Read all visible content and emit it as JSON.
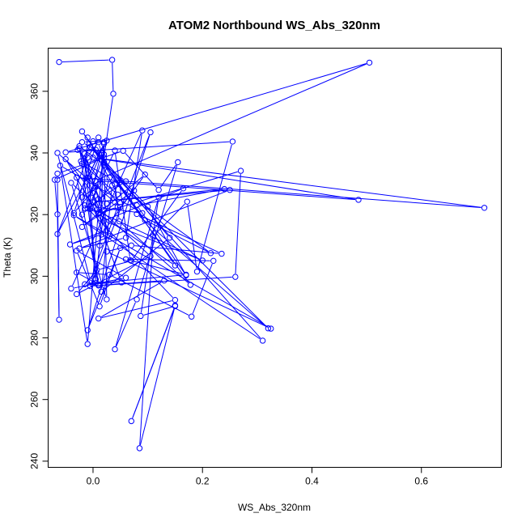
{
  "chart_data": {
    "type": "line",
    "title": "ATOM2 Northbound WS_Abs_320nm",
    "xlabel": "WS_Abs_320nm",
    "ylabel": "Theta (K)",
    "xlim": [
      -0.082,
      0.746
    ],
    "ylim": [
      238,
      374
    ],
    "xticks": [
      0.0,
      0.2,
      0.4,
      0.6
    ],
    "xtick_labels": [
      "0.0",
      "0.2",
      "0.4",
      "0.6"
    ],
    "yticks": [
      240,
      260,
      280,
      300,
      320,
      340,
      360
    ],
    "ytick_labels": [
      "240",
      "260",
      "280",
      "300",
      "320",
      "340",
      "360"
    ],
    "grid": false,
    "colors": {
      "series": "#0000ff",
      "axes": "#000000"
    },
    "series": [
      {
        "points": [
          [
            -0.062,
            369.5
          ],
          [
            0.035,
            370.2
          ],
          [
            0.037,
            359.2
          ],
          [
            0.02,
            338.5
          ],
          [
            -0.07,
            331.3
          ],
          [
            -0.065,
            320.1
          ],
          [
            -0.062,
            285.9
          ],
          [
            -0.065,
            331.3
          ],
          [
            -0.065,
            333.3
          ],
          [
            0.055,
            340.7
          ],
          [
            0.12,
            328.0
          ],
          [
            0.155,
            337.0
          ],
          [
            0.08,
            292.5
          ],
          [
            0.04,
            276.3
          ],
          [
            0.12,
            325.6
          ],
          [
            0.087,
            287.1
          ],
          [
            0.15,
            290.3
          ],
          [
            0.07,
            253.0
          ],
          [
            0.15,
            290.5
          ],
          [
            0.085,
            244.2
          ],
          [
            0.11,
            313.0
          ],
          [
            0.172,
            324.2
          ],
          [
            0.19,
            301.5
          ],
          [
            0.255,
            343.7
          ],
          [
            -0.05,
            340.2
          ],
          [
            0.505,
            369.3
          ],
          [
            0.004,
            331.0
          ],
          [
            0.485,
            324.8
          ],
          [
            0.0,
            338.5
          ],
          [
            0.715,
            322.2
          ],
          [
            -0.03,
            332.0
          ],
          [
            0.01,
            297.0
          ],
          [
            0.26,
            299.8
          ],
          [
            0.27,
            334.2
          ],
          [
            0.01,
            320.3
          ],
          [
            0.15,
            303.5
          ],
          [
            -0.02,
            347.0
          ],
          [
            0.095,
            318.2
          ],
          [
            0.215,
            307.5
          ],
          [
            0.04,
            330.0
          ],
          [
            0.048,
            317.8
          ],
          [
            0.178,
            297.2
          ],
          [
            0.02,
            336.0
          ],
          [
            0.32,
            283.1
          ],
          [
            0.08,
            320.2
          ],
          [
            0.235,
            307.3
          ],
          [
            0.07,
            310.0
          ],
          [
            0.025,
            308.0
          ],
          [
            0.325,
            283.0
          ],
          [
            -0.035,
            319.8
          ],
          [
            0.31,
            279.1
          ],
          [
            -0.005,
            342.0
          ],
          [
            0.1,
            322.6
          ],
          [
            0.17,
            300.3
          ],
          [
            0.08,
            323.0
          ],
          [
            0.24,
            328.3
          ],
          [
            0.0,
            324.0
          ],
          [
            0.25,
            328.0
          ],
          [
            -0.025,
            309.0
          ],
          [
            0.06,
            312.5
          ],
          [
            0.09,
            347.3
          ],
          [
            -0.04,
            296.0
          ],
          [
            0.06,
            299.5
          ],
          [
            -0.03,
            308.3
          ],
          [
            0.012,
            290.2
          ],
          [
            0.05,
            309.2
          ],
          [
            -0.01,
            282.5
          ],
          [
            0.105,
            346.7
          ],
          [
            -0.005,
            296.8
          ],
          [
            0.13,
            298.6
          ],
          [
            0.01,
            286.3
          ],
          [
            0.15,
            292.3
          ],
          [
            -0.015,
            323.0
          ],
          [
            0.2,
            305.1
          ],
          [
            0.02,
            318.0
          ],
          [
            0.165,
            328.5
          ],
          [
            0.07,
            305.0
          ],
          [
            0.007,
            302.0
          ],
          [
            -0.03,
            294.2
          ],
          [
            0.105,
            306.5
          ],
          [
            -0.04,
            330.3
          ],
          [
            0.025,
            292.5
          ],
          [
            0.02,
            343.5
          ],
          [
            -0.01,
            278.0
          ],
          [
            -0.06,
            335.9
          ],
          [
            0.09,
            320.5
          ],
          [
            0.0,
            322.5
          ],
          [
            0.052,
            298.0
          ],
          [
            -0.015,
            297.4
          ],
          [
            0.17,
            300.5
          ],
          [
            0.06,
            305.5
          ],
          [
            0.22,
            305.0
          ],
          [
            0.18,
            286.9
          ],
          [
            0.03,
            300.5
          ],
          [
            -0.03,
            301.2
          ],
          [
            0.01,
            297.3
          ],
          [
            -0.025,
            342.2
          ],
          [
            0.06,
            330.8
          ],
          [
            0.01,
            325.0
          ],
          [
            -0.02,
            320.0
          ],
          [
            -0.01,
            345.0
          ],
          [
            0.045,
            326.5
          ],
          [
            -0.02,
            336.5
          ],
          [
            0.01,
            343.5
          ],
          [
            0.02,
            337.0
          ],
          [
            -0.005,
            321.8
          ],
          [
            0.035,
            329.5
          ],
          [
            0.015,
            295.0
          ],
          [
            0.14,
            312.5
          ],
          [
            0.005,
            341.0
          ],
          [
            -0.028,
            341.0
          ],
          [
            0.05,
            322.5
          ],
          [
            0.075,
            327.8
          ],
          [
            -0.02,
            316.0
          ],
          [
            0.095,
            333.0
          ],
          [
            0.015,
            313.5
          ],
          [
            -0.042,
            310.3
          ],
          [
            0.025,
            315.0
          ],
          [
            -0.05,
            338.0
          ],
          [
            0.0,
            327.0
          ],
          [
            0.03,
            313.0
          ],
          [
            -0.015,
            339.8
          ],
          [
            0.005,
            297.8
          ],
          [
            -0.01,
            338.5
          ],
          [
            -0.065,
            313.7
          ],
          [
            0.025,
            344.0
          ],
          [
            -0.02,
            343.5
          ],
          [
            0.02,
            339.5
          ],
          [
            -0.015,
            322.0
          ],
          [
            0.012,
            320.6
          ],
          [
            0.03,
            332.0
          ],
          [
            -0.022,
            337.3
          ],
          [
            0.0,
            343.8
          ],
          [
            0.01,
            345.0
          ],
          [
            -0.035,
            320.5
          ],
          [
            0.01,
            329.8
          ],
          [
            0.025,
            323.5
          ],
          [
            0.04,
            324.0
          ],
          [
            -0.065,
            340.0
          ],
          [
            -0.005,
            298.5
          ],
          [
            0.045,
            322.5
          ],
          [
            0.01,
            320.4
          ],
          [
            -0.025,
            341.5
          ],
          [
            0.02,
            321.5
          ],
          [
            0.005,
            299.0
          ],
          [
            0.012,
            310.0
          ],
          [
            0.02,
            343.0
          ],
          [
            -0.01,
            332.0
          ],
          [
            0.005,
            329.0
          ],
          [
            -0.02,
            325.6
          ],
          [
            0.015,
            340.0
          ],
          [
            -0.01,
            322.0
          ],
          [
            0.04,
            340.8
          ],
          [
            0.068,
            305.2
          ]
        ]
      }
    ]
  }
}
